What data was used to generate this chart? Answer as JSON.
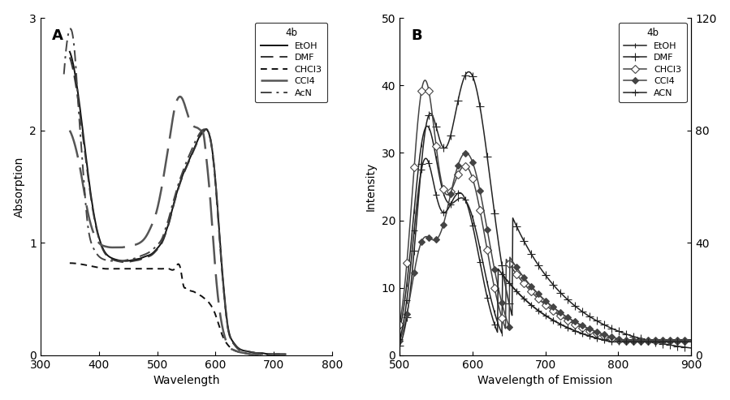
{
  "panel_A": {
    "title": "A",
    "xlabel": "Wavelength",
    "ylabel": "Absorption",
    "xlim": [
      300,
      800
    ],
    "ylim": [
      0,
      3
    ],
    "yticks": [
      0,
      1,
      2,
      3
    ],
    "xticks": [
      300,
      400,
      500,
      600,
      700,
      800
    ],
    "legend_title": "4b",
    "legend_entries": [
      "EtOH",
      "DMF",
      "CHCl3",
      "CCl4",
      "AcN"
    ]
  },
  "panel_B": {
    "title": "B",
    "xlabel": "Wavelength of Emission",
    "ylabel": "Intensity",
    "xlim": [
      500,
      900
    ],
    "ylim": [
      0,
      50
    ],
    "ylim2": [
      0,
      120
    ],
    "yticks": [
      0,
      10,
      20,
      30,
      40,
      50
    ],
    "yticks2": [
      0,
      40,
      80,
      120
    ],
    "xticks": [
      500,
      600,
      700,
      800,
      900
    ],
    "legend_title": "4b",
    "legend_entries": [
      "EtOH",
      "DMF",
      "CHCl3",
      "CCl4",
      "ACN"
    ]
  }
}
